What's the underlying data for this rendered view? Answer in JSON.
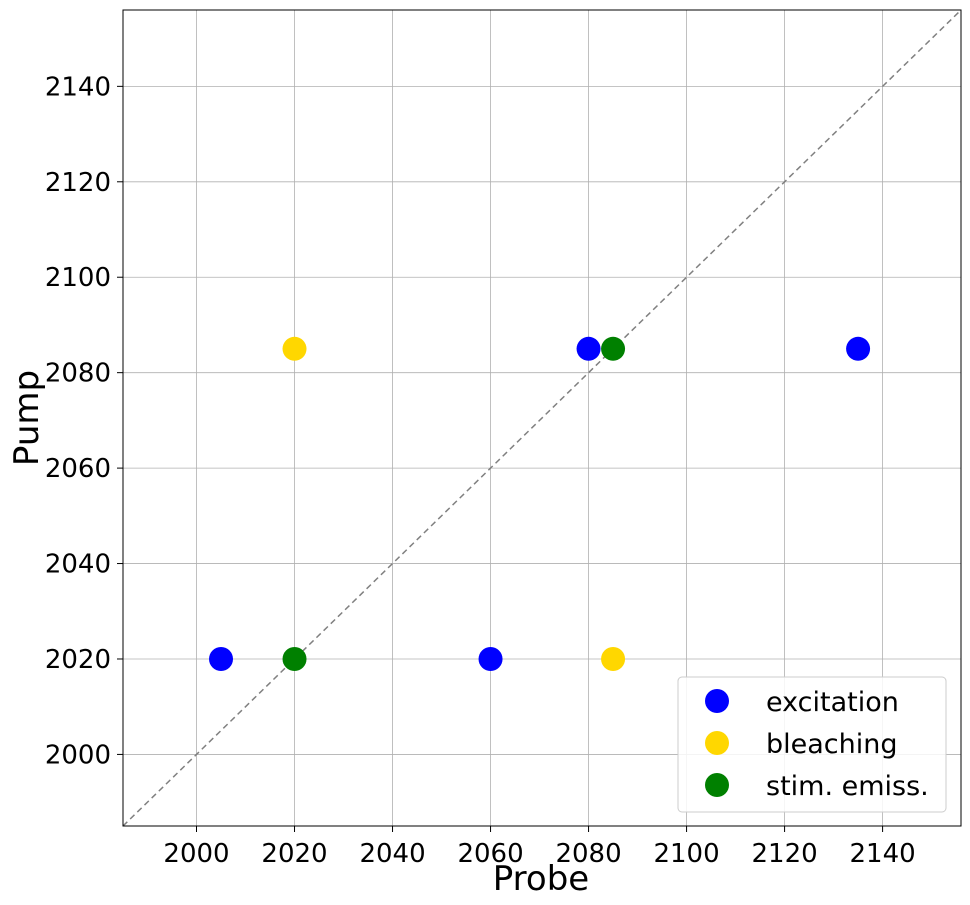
{
  "chart_data": {
    "type": "scatter",
    "title": "",
    "xlabel": "Probe",
    "ylabel": "Pump",
    "xlim": [
      1985,
      2156
    ],
    "ylim": [
      1985,
      2156
    ],
    "xticks": [
      2000,
      2020,
      2040,
      2060,
      2080,
      2100,
      2120,
      2140
    ],
    "yticks": [
      2000,
      2020,
      2040,
      2060,
      2080,
      2100,
      2120,
      2140
    ],
    "grid": true,
    "diagonal_reference_line": true,
    "legend_position": "bottom-right",
    "series": [
      {
        "name": "excitation",
        "color": "#0000ff",
        "points": [
          {
            "x": 2005,
            "y": 2020
          },
          {
            "x": 2060,
            "y": 2020
          },
          {
            "x": 2080,
            "y": 2085
          },
          {
            "x": 2135,
            "y": 2085
          }
        ]
      },
      {
        "name": "bleaching",
        "color": "#ffd700",
        "points": [
          {
            "x": 2020,
            "y": 2085
          },
          {
            "x": 2085,
            "y": 2020
          }
        ]
      },
      {
        "name": "stim. emiss.",
        "color": "#008000",
        "points": [
          {
            "x": 2020,
            "y": 2020
          },
          {
            "x": 2085,
            "y": 2085
          }
        ]
      }
    ]
  }
}
